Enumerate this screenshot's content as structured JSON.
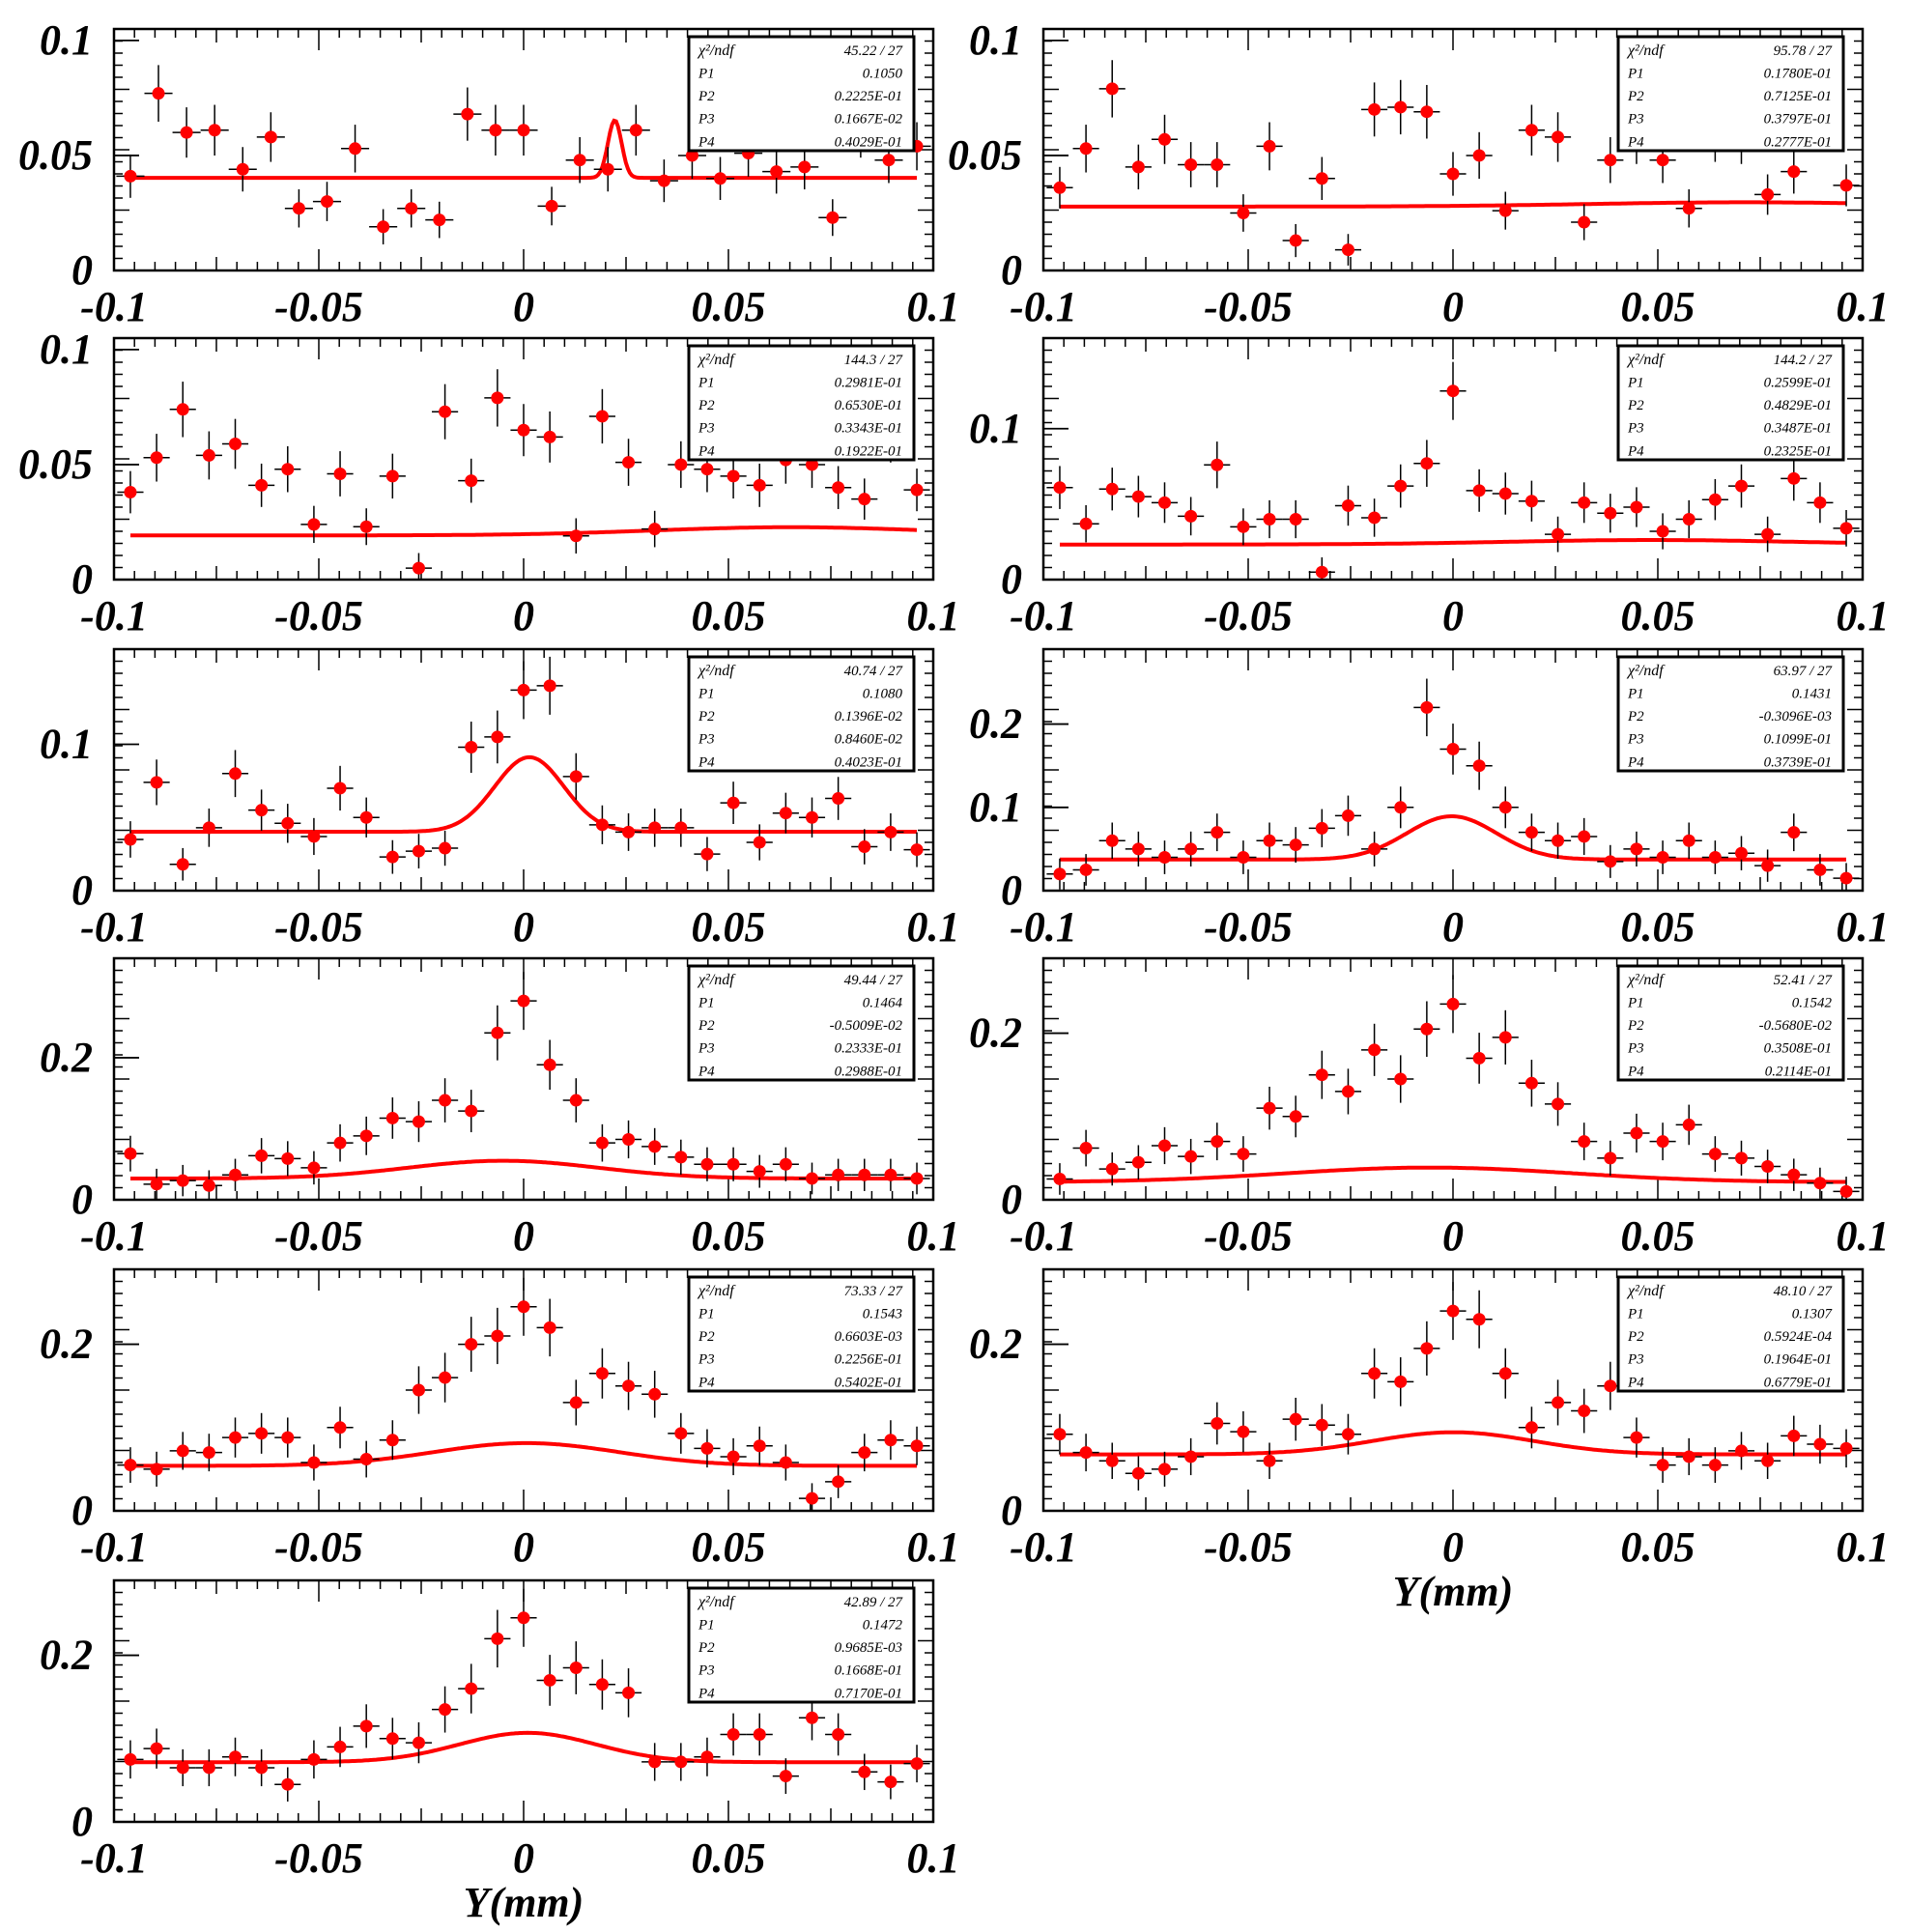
{
  "figure": {
    "xlabel": "Y(mm)",
    "colors": {
      "data": "#ff0000",
      "fit": "#ff0000",
      "axis": "#000000"
    },
    "chi2_label": "χ²/ndf",
    "param_labels": [
      "P1",
      "P2",
      "P3",
      "P4"
    ]
  },
  "chart_data": [
    {
      "type": "scatter",
      "xlim": [
        -0.1,
        0.1
      ],
      "ylim": [
        0,
        0.105
      ],
      "yticks": [
        "0",
        "0.05",
        "0.1"
      ],
      "ytick_values": [
        0,
        0.05,
        0.1
      ],
      "xticks": [
        "-0.1",
        "-0.05",
        "0",
        "0.05",
        "0.1"
      ],
      "xtick_values": [
        -0.1,
        -0.05,
        0,
        0.05,
        0.1
      ],
      "xlabel": "",
      "stats": {
        "chi2": "45.22",
        "ndf": "27",
        "P1": "0.1050",
        "P2": "0.2225E-01",
        "P3": "0.1667E-02",
        "P4": "0.4029E-01"
      },
      "fit": {
        "P1": 0.105,
        "P2": 0.02225,
        "P3": 0.001667,
        "P4": 0.04029,
        "amp": 0.025
      },
      "y": [
        0.041,
        0.077,
        0.06,
        0.061,
        0.044,
        0.058,
        0.027,
        0.03,
        0.053,
        0.019,
        0.027,
        0.022,
        0.068,
        0.061,
        0.061,
        0.028,
        0.048,
        0.044,
        0.061,
        0.039,
        0.05,
        0.04,
        0.051,
        0.043,
        0.045,
        0.023,
        0.06,
        0.048,
        0.054
      ]
    },
    {
      "type": "scatter",
      "xlim": [
        -0.1,
        0.1
      ],
      "ylim": [
        0,
        0.105
      ],
      "yticks": [
        "0",
        "0.05",
        "0.1"
      ],
      "ytick_values": [
        0,
        0.05,
        0.1
      ],
      "xticks": [
        "-0.1",
        "-0.05",
        "0",
        "0.05",
        "0.1"
      ],
      "xtick_values": [
        -0.1,
        -0.05,
        0,
        0.05,
        0.1
      ],
      "xlabel": "",
      "stats": {
        "chi2": "95.78",
        "ndf": "27",
        "P1": "0.1780E-01",
        "P2": "0.7125E-01",
        "P3": "0.3797E-01",
        "P4": "0.2777E-01"
      },
      "fit": {
        "P1": 0.0178,
        "P2": 0.07125,
        "P3": 0.03797,
        "P4": 0.02777
      },
      "y": [
        0.036,
        0.053,
        0.079,
        0.045,
        0.057,
        0.046,
        0.046,
        0.025,
        0.054,
        0.013,
        0.04,
        0.009,
        0.07,
        0.071,
        0.069,
        0.042,
        0.05,
        0.026,
        0.061,
        0.058,
        0.021,
        0.048,
        0.057,
        0.048,
        0.027,
        0.058,
        0.057,
        0.033,
        0.043,
        0.069,
        0.037
      ]
    },
    {
      "type": "scatter",
      "xlim": [
        -0.1,
        0.1
      ],
      "ylim": [
        0,
        0.105
      ],
      "yticks": [
        "0",
        "0.05",
        "0.1"
      ],
      "ytick_values": [
        0,
        0.05,
        0.1
      ],
      "xticks": [
        "-0.1",
        "-0.05",
        "0",
        "0.05",
        "0.1"
      ],
      "xtick_values": [
        -0.1,
        -0.05,
        0,
        0.05,
        0.1
      ],
      "xlabel": "",
      "stats": {
        "chi2": "144.3",
        "ndf": "27",
        "P1": "0.2981E-01",
        "P2": "0.6530E-01",
        "P3": "0.3343E-01",
        "P4": "0.1922E-01"
      },
      "fit": {
        "P1": 0.02981,
        "P2": 0.0653,
        "P3": 0.03343,
        "P4": 0.01922
      },
      "y": [
        0.038,
        0.053,
        0.074,
        0.054,
        0.059,
        0.041,
        0.048,
        0.024,
        0.046,
        0.023,
        0.045,
        0.005,
        0.073,
        0.043,
        0.079,
        0.065,
        0.062,
        0.019,
        0.071,
        0.051,
        0.022,
        0.05,
        0.048,
        0.045,
        0.041,
        0.052,
        0.05,
        0.04,
        0.035,
        0.062,
        0.039
      ]
    },
    {
      "type": "scatter",
      "xlim": [
        -0.1,
        0.1
      ],
      "ylim": [
        0,
        0.16
      ],
      "yticks": [
        "0",
        "0.1"
      ],
      "ytick_values": [
        0,
        0.1
      ],
      "xticks": [
        "-0.1",
        "-0.05",
        "0",
        "0.05",
        "0.1"
      ],
      "xtick_values": [
        -0.1,
        -0.05,
        0,
        0.05,
        0.1
      ],
      "xlabel": "",
      "stats": {
        "chi2": "144.2",
        "ndf": "27",
        "P1": "0.2599E-01",
        "P2": "0.4829E-01",
        "P3": "0.3487E-01",
        "P4": "0.2325E-01"
      },
      "fit": {
        "P1": 0.02599,
        "P2": 0.04829,
        "P3": 0.03487,
        "P4": 0.02325
      },
      "y": [
        0.061,
        0.037,
        0.06,
        0.055,
        0.051,
        0.042,
        0.076,
        0.035,
        0.04,
        0.04,
        0.005,
        0.049,
        0.041,
        0.062,
        0.077,
        0.125,
        0.059,
        0.057,
        0.052,
        0.03,
        0.051,
        0.044,
        0.048,
        0.032,
        0.04,
        0.053,
        0.062,
        0.03,
        0.067,
        0.051,
        0.034
      ]
    },
    {
      "type": "scatter",
      "xlim": [
        -0.1,
        0.1
      ],
      "ylim": [
        0,
        0.165
      ],
      "yticks": [
        "0",
        "0.1"
      ],
      "ytick_values": [
        0,
        0.1
      ],
      "xticks": [
        "-0.1",
        "-0.05",
        "0",
        "0.05",
        "0.1"
      ],
      "xtick_values": [
        -0.1,
        -0.05,
        0,
        0.05,
        0.1
      ],
      "xlabel": "",
      "stats": {
        "chi2": "40.74",
        "ndf": "27",
        "P1": "0.1080",
        "P2": "0.1396E-02",
        "P3": "0.8460E-02",
        "P4": "0.4023E-01"
      },
      "fit": {
        "P1": 0.108,
        "P2": 0.001396,
        "P3": 0.00846,
        "P4": 0.04023
      },
      "y": [
        0.035,
        0.074,
        0.018,
        0.043,
        0.08,
        0.055,
        0.046,
        0.037,
        0.07,
        0.05,
        0.023,
        0.027,
        0.029,
        0.098,
        0.105,
        0.137,
        0.14,
        0.078,
        0.045,
        0.04,
        0.043,
        0.043,
        0.025,
        0.06,
        0.033,
        0.053,
        0.05,
        0.063,
        0.03,
        0.04,
        0.028
      ]
    },
    {
      "type": "scatter",
      "xlim": [
        -0.1,
        0.1
      ],
      "ylim": [
        0,
        0.29
      ],
      "yticks": [
        "0",
        "0.1",
        "0.2"
      ],
      "ytick_values": [
        0,
        0.1,
        0.2
      ],
      "xticks": [
        "-0.1",
        "-0.05",
        "0",
        "0.05",
        "0.1"
      ],
      "xtick_values": [
        -0.1,
        -0.05,
        0,
        0.05,
        0.1
      ],
      "xlabel": "",
      "stats": {
        "chi2": "63.97",
        "ndf": "27",
        "P1": "0.1431",
        "P2": "-0.3096E-03",
        "P3": "0.1099E-01",
        "P4": "0.3739E-01"
      },
      "fit": {
        "P1": 0.1431,
        "P2": -0.0003096,
        "P3": 0.01099,
        "P4": 0.03739
      },
      "y": [
        0.02,
        0.025,
        0.06,
        0.05,
        0.04,
        0.05,
        0.07,
        0.04,
        0.06,
        0.055,
        0.075,
        0.09,
        0.05,
        0.1,
        0.22,
        0.17,
        0.15,
        0.1,
        0.07,
        0.06,
        0.065,
        0.035,
        0.05,
        0.04,
        0.06,
        0.04,
        0.045,
        0.03,
        0.07,
        0.025,
        0.015
      ]
    },
    {
      "type": "scatter",
      "xlim": [
        -0.1,
        0.1
      ],
      "ylim": [
        0,
        0.34
      ],
      "yticks": [
        "0",
        "0.2"
      ],
      "ytick_values": [
        0,
        0.2
      ],
      "xticks": [
        "-0.1",
        "-0.05",
        "0",
        "0.05",
        "0.1"
      ],
      "xtick_values": [
        -0.1,
        -0.05,
        0,
        0.05,
        0.1
      ],
      "xlabel": "",
      "stats": {
        "chi2": "49.44",
        "ndf": "27",
        "P1": "0.1464",
        "P2": "-0.5009E-02",
        "P3": "0.2333E-01",
        "P4": "0.2988E-01"
      },
      "fit": {
        "P1": 0.1464,
        "P2": -0.005009,
        "P3": 0.02333,
        "P4": 0.02988
      },
      "y": [
        0.065,
        0.022,
        0.027,
        0.02,
        0.035,
        0.062,
        0.058,
        0.045,
        0.08,
        0.09,
        0.115,
        0.11,
        0.14,
        0.125,
        0.235,
        0.28,
        0.19,
        0.14,
        0.08,
        0.085,
        0.075,
        0.06,
        0.05,
        0.05,
        0.04,
        0.05,
        0.03,
        0.035,
        0.035,
        0.035,
        0.03
      ]
    },
    {
      "type": "scatter",
      "xlim": [
        -0.1,
        0.1
      ],
      "ylim": [
        0,
        0.29
      ],
      "yticks": [
        "0",
        "0.2"
      ],
      "ytick_values": [
        0,
        0.2
      ],
      "xticks": [
        "-0.1",
        "-0.05",
        "0",
        "0.05",
        "0.1"
      ],
      "xtick_values": [
        -0.1,
        -0.05,
        0,
        0.05,
        0.1
      ],
      "xlabel": "",
      "stats": {
        "chi2": "52.41",
        "ndf": "27",
        "P1": "0.1542",
        "P2": "-0.5680E-02",
        "P3": "0.3508E-01",
        "P4": "0.2114E-01"
      },
      "fit": {
        "P1": 0.1542,
        "P2": -0.00568,
        "P3": 0.03508,
        "P4": 0.02114
      },
      "y": [
        0.025,
        0.062,
        0.037,
        0.045,
        0.065,
        0.052,
        0.07,
        0.055,
        0.11,
        0.1,
        0.15,
        0.13,
        0.18,
        0.145,
        0.205,
        0.235,
        0.17,
        0.195,
        0.14,
        0.115,
        0.07,
        0.05,
        0.08,
        0.07,
        0.09,
        0.055,
        0.05,
        0.04,
        0.03,
        0.02,
        0.01
      ]
    },
    {
      "type": "scatter",
      "xlim": [
        -0.1,
        0.1
      ],
      "ylim": [
        0,
        0.29
      ],
      "yticks": [
        "0",
        "0.2"
      ],
      "ytick_values": [
        0,
        0.2
      ],
      "xticks": [
        "-0.1",
        "-0.05",
        "0",
        "0.05",
        "0.1"
      ],
      "xtick_values": [
        -0.1,
        -0.05,
        0,
        0.05,
        0.1
      ],
      "xlabel": "",
      "stats": {
        "chi2": "73.33",
        "ndf": "27",
        "P1": "0.1543",
        "P2": "0.6603E-03",
        "P3": "0.2256E-01",
        "P4": "0.5402E-01"
      },
      "fit": {
        "P1": 0.1543,
        "P2": 0.0006603,
        "P3": 0.02256,
        "P4": 0.05402
      },
      "y": [
        0.055,
        0.05,
        0.072,
        0.07,
        0.088,
        0.093,
        0.088,
        0.058,
        0.1,
        0.062,
        0.085,
        0.145,
        0.16,
        0.2,
        0.21,
        0.245,
        0.22,
        0.13,
        0.165,
        0.15,
        0.14,
        0.093,
        0.075,
        0.065,
        0.078,
        0.058,
        0.015,
        0.035,
        0.07,
        0.085,
        0.078
      ]
    },
    {
      "type": "scatter",
      "xlim": [
        -0.1,
        0.1
      ],
      "ylim": [
        0,
        0.29
      ],
      "yticks": [
        "0",
        "0.2"
      ],
      "ytick_values": [
        0,
        0.2
      ],
      "xticks": [
        "-0.1",
        "-0.05",
        "0",
        "0.05",
        "0.1"
      ],
      "xtick_values": [
        -0.1,
        -0.05,
        0,
        0.05,
        0.1
      ],
      "xlabel": "Y(mm)",
      "stats": {
        "chi2": "48.10",
        "ndf": "27",
        "P1": "0.1307",
        "P2": "0.5924E-04",
        "P3": "0.1964E-01",
        "P4": "0.6779E-01"
      },
      "fit": {
        "P1": 0.1307,
        "P2": 5.924e-05,
        "P3": 0.01964,
        "P4": 0.06779
      },
      "y": [
        0.092,
        0.07,
        0.06,
        0.045,
        0.05,
        0.065,
        0.105,
        0.095,
        0.06,
        0.11,
        0.103,
        0.092,
        0.165,
        0.155,
        0.195,
        0.24,
        0.23,
        0.165,
        0.1,
        0.13,
        0.12,
        0.15,
        0.088,
        0.055,
        0.065,
        0.055,
        0.072,
        0.06,
        0.09,
        0.08,
        0.075
      ]
    },
    {
      "type": "scatter",
      "xlim": [
        -0.1,
        0.1
      ],
      "ylim": [
        0,
        0.29
      ],
      "yticks": [
        "0",
        "0.2"
      ],
      "ytick_values": [
        0,
        0.2
      ],
      "xticks": [
        "-0.1",
        "-0.05",
        "0",
        "0.05",
        "0.1"
      ],
      "xtick_values": [
        -0.1,
        -0.05,
        0,
        0.05,
        0.1
      ],
      "xlabel": "Y(mm)",
      "stats": {
        "chi2": "42.89",
        "ndf": "27",
        "P1": "0.1472",
        "P2": "0.9685E-03",
        "P3": "0.1668E-01",
        "P4": "0.7170E-01"
      },
      "fit": {
        "P1": 0.1472,
        "P2": 0.0009685,
        "P3": 0.01668,
        "P4": 0.0717
      },
      "y": [
        0.075,
        0.088,
        0.065,
        0.065,
        0.078,
        0.065,
        0.045,
        0.075,
        0.09,
        0.115,
        0.1,
        0.095,
        0.135,
        0.16,
        0.22,
        0.245,
        0.17,
        0.185,
        0.165,
        0.155,
        0.072,
        0.072,
        0.078,
        0.105,
        0.105,
        0.055,
        0.125,
        0.105,
        0.06,
        0.048,
        0.07
      ]
    }
  ]
}
